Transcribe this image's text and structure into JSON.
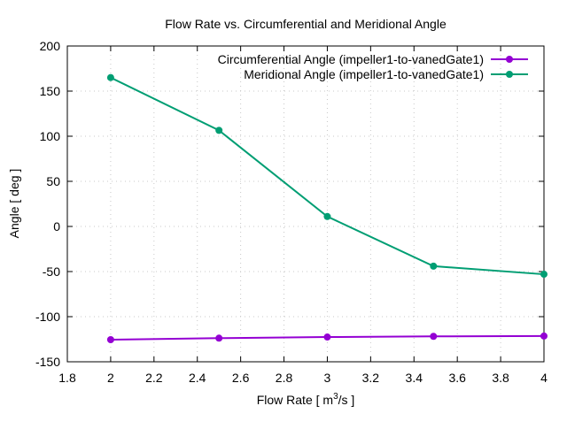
{
  "chart_data": {
    "type": "line",
    "title": "Flow Rate vs. Circumferential and Meridional Angle",
    "xlabel_main": "Flow Rate [ m",
    "xlabel_sup": "3",
    "xlabel_tail": "/s ]",
    "ylabel": "Angle [ deg ]",
    "xlim": [
      1.8,
      4.0
    ],
    "ylim": [
      -150,
      200
    ],
    "x_ticks": [
      1.8,
      2.0,
      2.2,
      2.4,
      2.6,
      2.8,
      3.0,
      3.2,
      3.4,
      3.6,
      3.8,
      4.0
    ],
    "x_tick_labels": [
      "1.8",
      "2",
      "2.2",
      "2.4",
      "2.6",
      "2.8",
      "3",
      "3.2",
      "3.4",
      "3.6",
      "3.8",
      "4"
    ],
    "y_ticks": [
      -150,
      -100,
      -50,
      0,
      50,
      100,
      150,
      200
    ],
    "y_tick_labels": [
      "-150",
      "-100",
      "-50",
      "0",
      "50",
      "100",
      "150",
      "200"
    ],
    "grid": true,
    "legend_position": "top-right",
    "series": [
      {
        "name": "Circumferential Angle (impeller1-to-vanedGate1)",
        "color": "#9400d3",
        "x": [
          2.0,
          2.5,
          3.0,
          3.49,
          4.0
        ],
        "values": [
          -125.5,
          -123.8,
          -122.6,
          -121.8,
          -121.5
        ]
      },
      {
        "name": "Meridional Angle (impeller1-to-vanedGate1)",
        "color": "#009e73",
        "x": [
          2.0,
          2.5,
          3.0,
          3.49,
          4.0
        ],
        "values": [
          165.0,
          106.5,
          11.0,
          -44.0,
          -53.0
        ]
      }
    ]
  }
}
